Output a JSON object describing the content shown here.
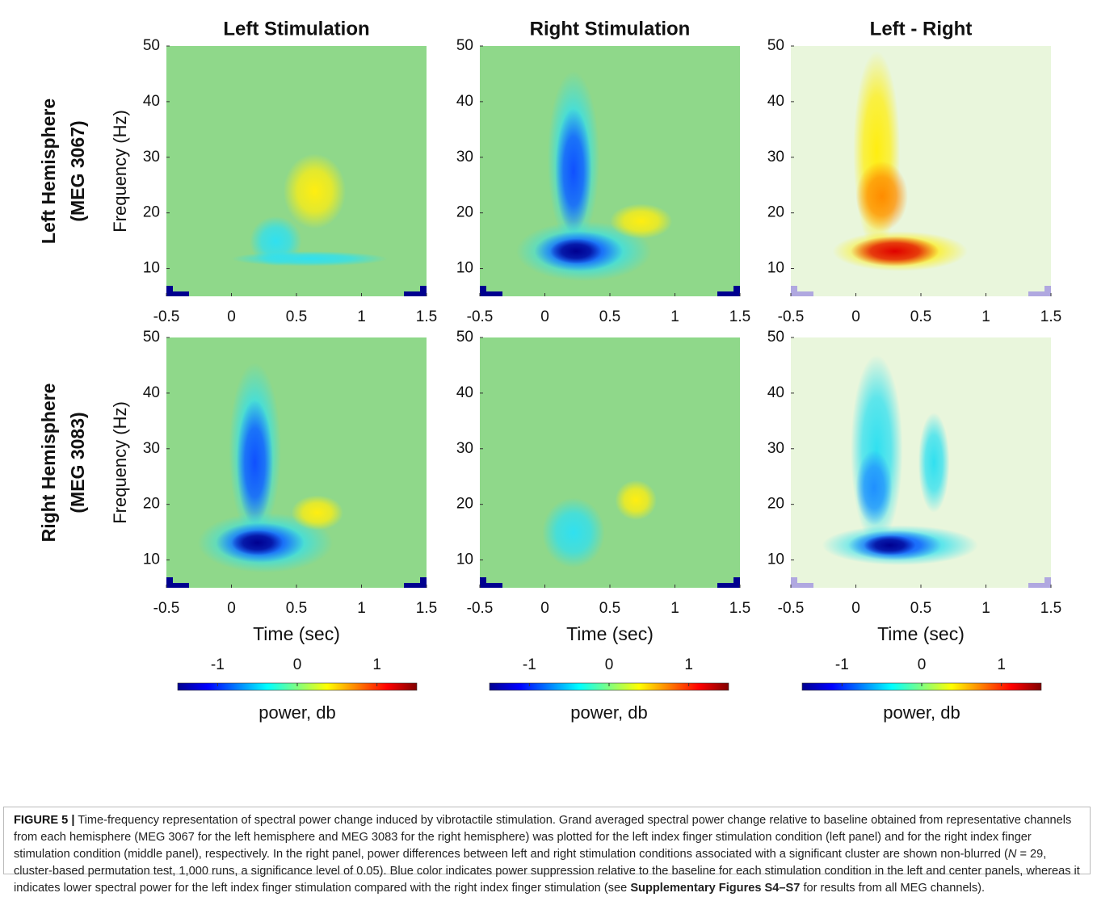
{
  "figure": {
    "columns": [
      "Left Stimulation",
      "Right Stimulation",
      "Left - Right"
    ],
    "rows": [
      [
        "Left Hemisphere",
        "(MEG 3067)"
      ],
      [
        "Right Hemisphere",
        "(MEG 3083)"
      ]
    ],
    "y_label": "Frequency (Hz)",
    "x_label": "Time (sec)",
    "xlim": [
      -0.5,
      1.5
    ],
    "xticks": [
      -0.5,
      0,
      0.5,
      1,
      1.5
    ],
    "ylim": [
      5,
      50
    ],
    "yticks": [
      10,
      20,
      30,
      40,
      50
    ],
    "colorbar": {
      "lim": [
        -1.5,
        1.5
      ],
      "ticks": [
        -1,
        0,
        1
      ],
      "label": "power, db",
      "colormap": "jet"
    }
  },
  "caption": [
    {
      "text": "FIGURE 5 |",
      "style": "bold"
    },
    {
      "text": " Time-frequency representation of spectral power change induced by vibrotactile stimulation. Grand averaged spectral power change relative to baseline obtained from representative channels from each hemisphere (MEG 3067 for the left hemisphere and MEG 3083 for the right hemisphere) was plotted for the left index finger stimulation condition (left panel) and for the right index finger stimulation condition (middle panel), respectively. In the right panel, power differences between left and right stimulation conditions associated with a significant cluster are shown non-blurred (",
      "style": "normal"
    },
    {
      "text": "N",
      "style": "italic"
    },
    {
      "text": " = 29, cluster-based permutation test, 1,000 runs, a significance level of 0.05). Blue color indicates power suppression relative to the baseline for each stimulation condition in the left and center panels, whereas it indicates lower spectral power for the left index finger stimulation compared with the right index finger stimulation (see ",
      "style": "normal"
    },
    {
      "text": "Supplementary Figures S4–S7",
      "style": "bold"
    },
    {
      "text": " for results from all MEG channels).",
      "style": "normal"
    }
  ]
}
